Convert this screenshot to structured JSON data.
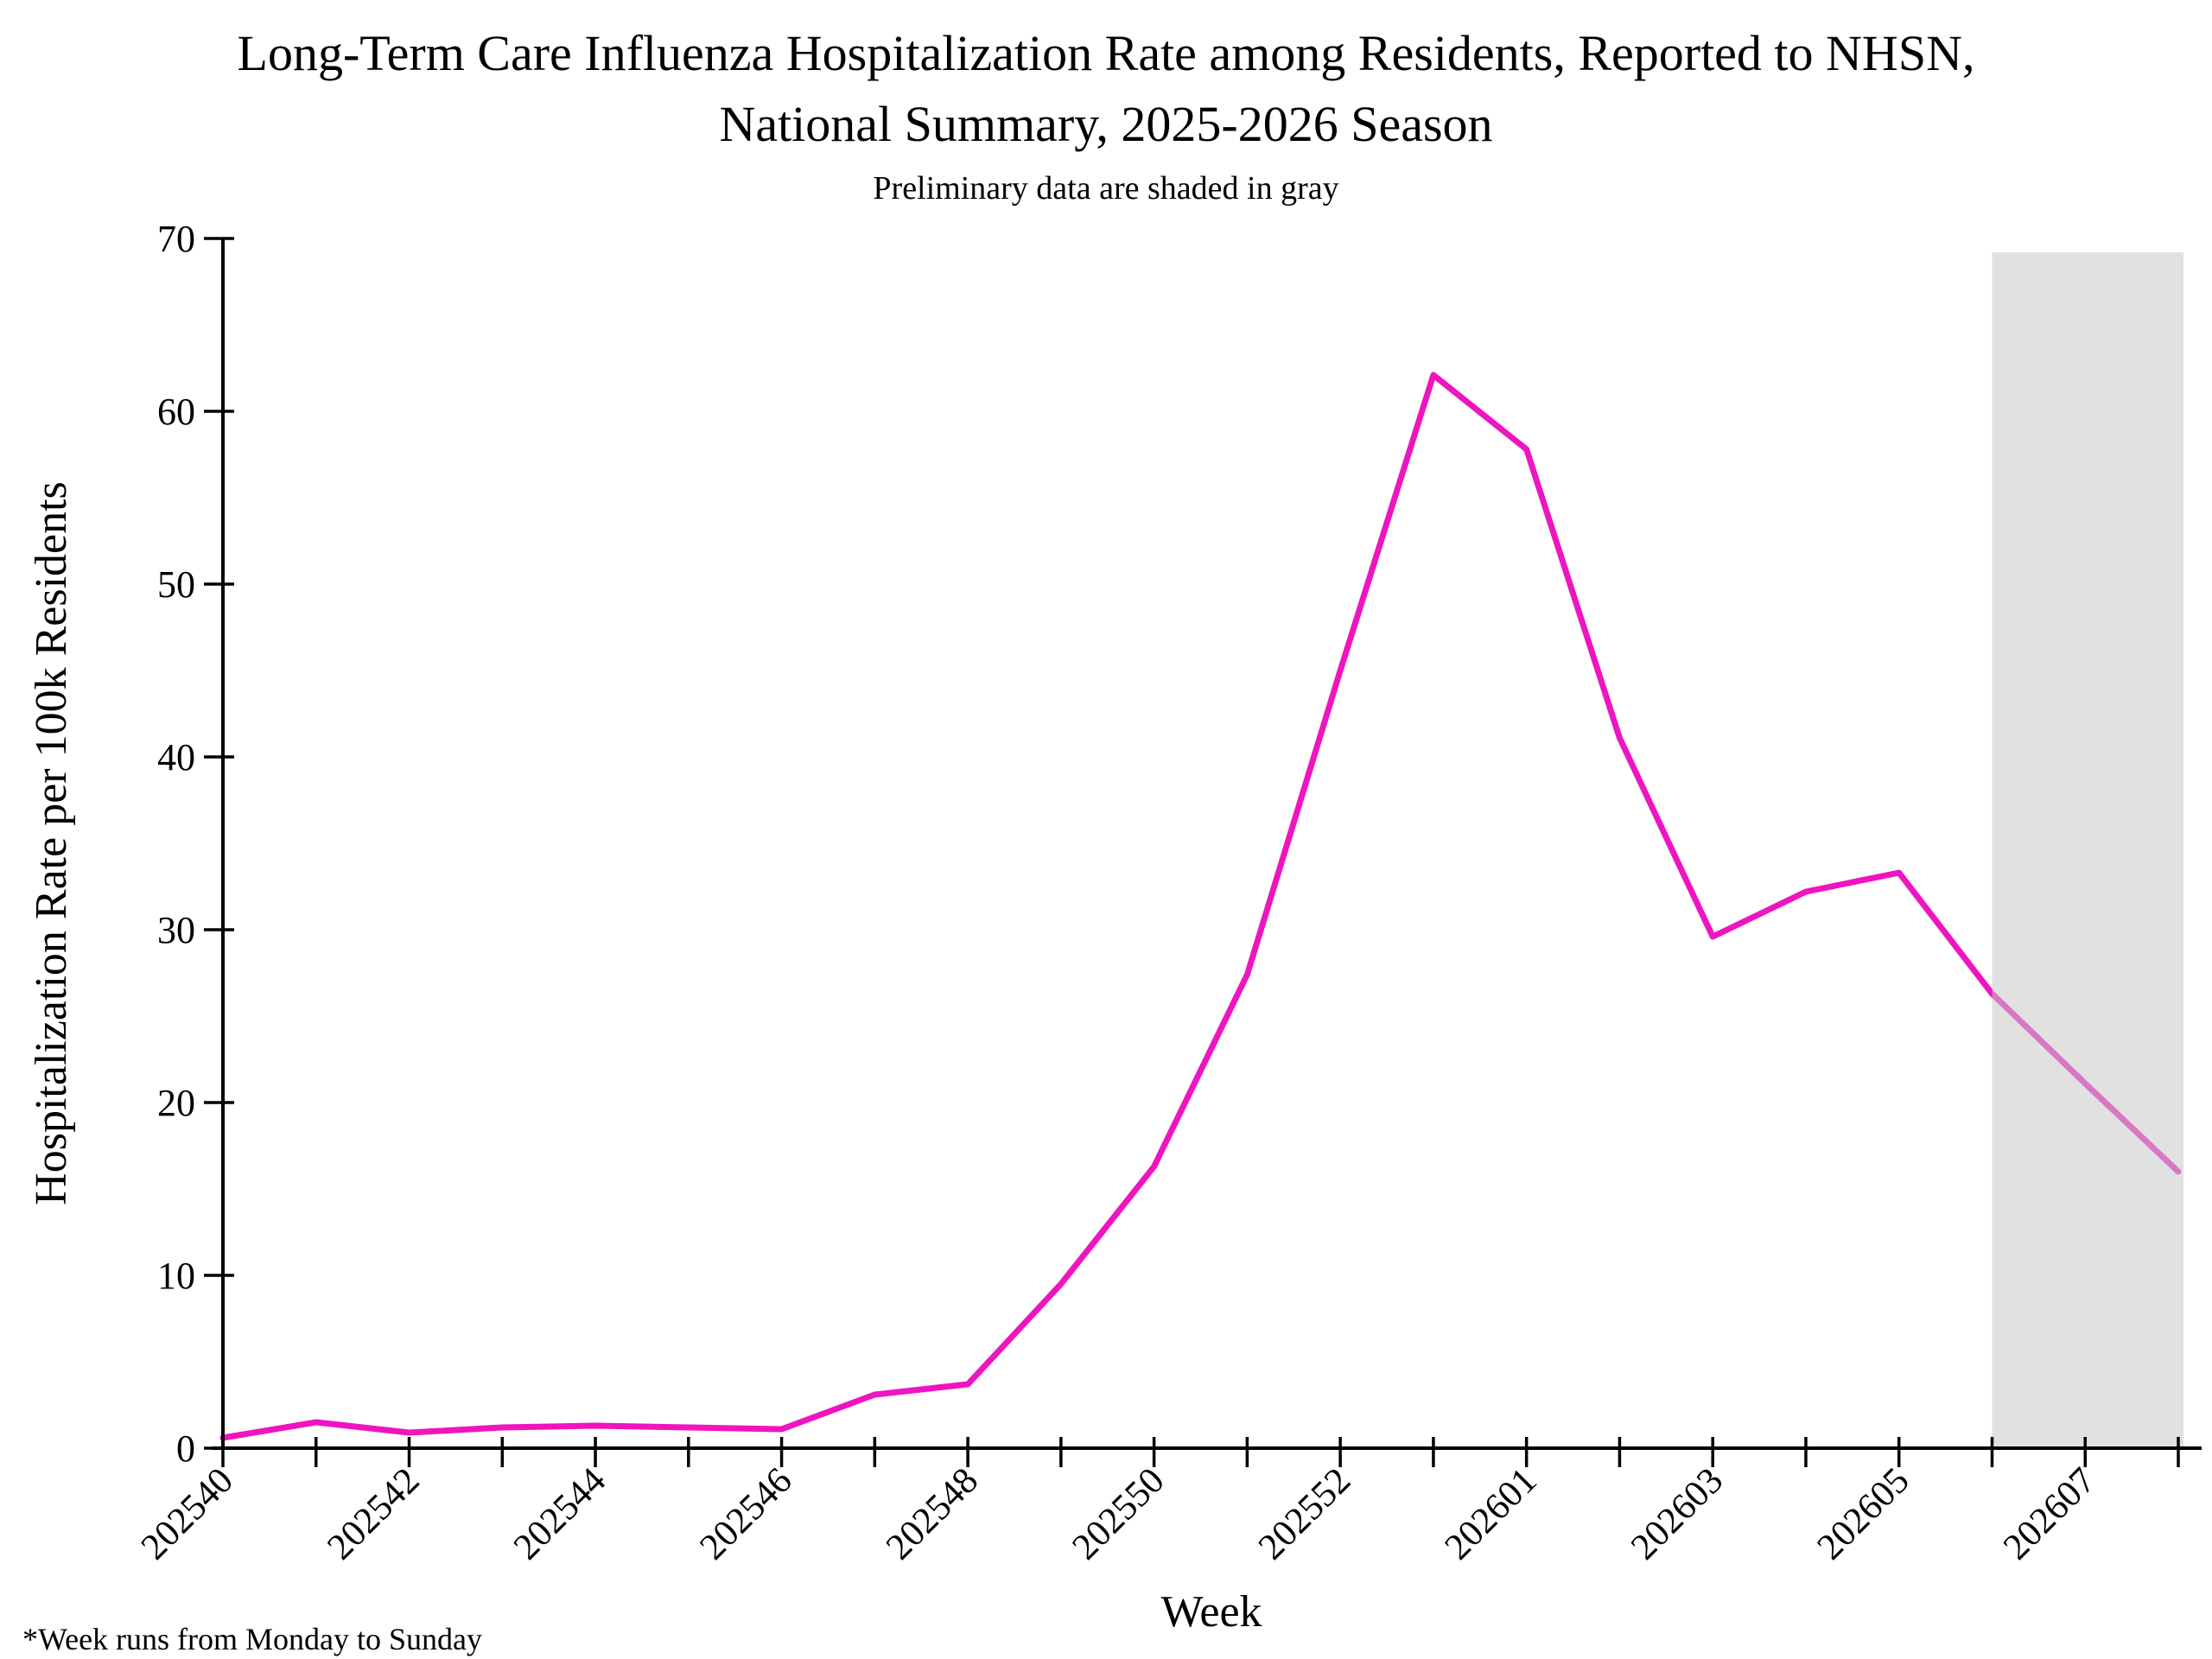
{
  "page": {
    "title_line1": "Long-Term Care Influenza Hospitalization Rate among Residents, Reported to NHSN,",
    "title_line2": "National Summary, 2025-2026 Season",
    "subtitle": "Preliminary data are shaded in gray",
    "footnote": "*Week runs from Monday to Sunday"
  },
  "chart_data": {
    "type": "line",
    "title": "Long-Term Care Influenza Hospitalization Rate among Residents, Reported to NHSN, National Summary, 2025-2026 Season",
    "subtitle": "Preliminary data are shaded in gray",
    "xlabel": "Week",
    "ylabel": "Hospitalization Rate per 100k Residents",
    "ylim": [
      0,
      70
    ],
    "yticks": [
      0,
      10,
      20,
      30,
      40,
      50,
      60,
      70
    ],
    "x": [
      "202540",
      "202541",
      "202542",
      "202543",
      "202544",
      "202545",
      "202546",
      "202547",
      "202548",
      "202549",
      "202550",
      "202551",
      "202552",
      "202553",
      "202601",
      "202602",
      "202603",
      "202604",
      "202605",
      "202606",
      "202607",
      "202608"
    ],
    "values": [
      0.6,
      1.5,
      0.9,
      1.2,
      1.3,
      1.2,
      1.1,
      3.1,
      3.7,
      9.5,
      16.3,
      27.4,
      45.0,
      62.1,
      57.8,
      41.1,
      29.6,
      32.2,
      33.3,
      26.3,
      21.1,
      16.0
    ],
    "x_labeled_every": 2,
    "grid": false,
    "legend": "none",
    "line_color": "#EE15C0",
    "axis_color": "#000000",
    "preliminary_region": {
      "start_week": "202606",
      "end_week": "202608",
      "apparent_fill": "#E0E0E0",
      "fill": "#C9C9C9",
      "fill_opacity": 0.55
    },
    "footnote": "*Week runs from Monday to Sunday"
  }
}
